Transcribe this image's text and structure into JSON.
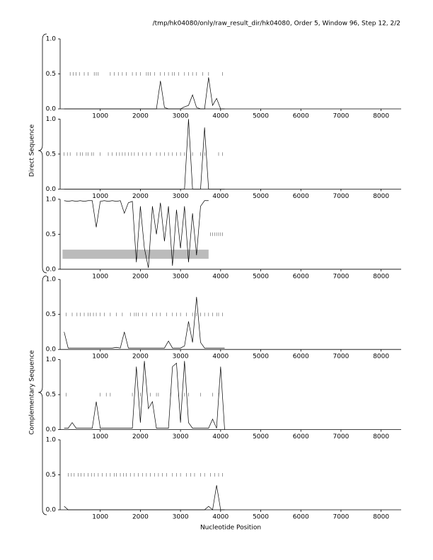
{
  "title": "/tmp/hk04080/only/raw_result_dir/hk04080, Order 5, Window 96, Step 12, 2/2",
  "x_label": "Nucleotide Position",
  "groups": [
    "Direct Sequence",
    "Complementary Sequence"
  ],
  "chart_data": [
    {
      "type": "line",
      "color": "#000000",
      "x": [
        100,
        200,
        300,
        400,
        500,
        600,
        700,
        800,
        900,
        1000,
        1100,
        1200,
        1300,
        1400,
        1500,
        1600,
        1700,
        1800,
        1900,
        2000,
        2100,
        2200,
        2300,
        2400,
        2500,
        2600,
        2700,
        2800,
        2900,
        3000,
        3100,
        3200,
        3300,
        3400,
        3500,
        3600,
        3700,
        3800,
        3900,
        4000,
        4100
      ],
      "series": [
        {
          "values": [
            0,
            0,
            0,
            0,
            0,
            0,
            0,
            0,
            0,
            0,
            0,
            0,
            0,
            0,
            0,
            0,
            0,
            0,
            0,
            0,
            0,
            0,
            0,
            0,
            0.4,
            0.02,
            0,
            0,
            0,
            0,
            0.03,
            0.05,
            0.2,
            0.02,
            0,
            0,
            0.45,
            0.05,
            0.15,
            0,
            0
          ]
        }
      ],
      "stops": [
        250,
        330,
        400,
        480,
        600,
        700,
        850,
        900,
        950,
        1250,
        1350,
        1450,
        1550,
        1650,
        1800,
        1900,
        2000,
        2150,
        2200,
        2250,
        2350,
        2500,
        2600,
        2700,
        2800,
        2850,
        2950,
        3100,
        3200,
        3300,
        3400,
        3550,
        3700,
        4050
      ],
      "xlim": [
        0,
        8500
      ],
      "xticks": [
        1000,
        2000,
        3000,
        4000,
        5000,
        6000,
        7000,
        8000
      ],
      "ylim": [
        0,
        1
      ],
      "yticks": [
        {
          "value": 0,
          "label": "0.0"
        },
        0.5,
        {
          "value": 1,
          "label": "1.0"
        }
      ]
    },
    {
      "type": "line",
      "color": "#000000",
      "x": [
        100,
        200,
        300,
        400,
        500,
        600,
        700,
        800,
        900,
        1000,
        1100,
        1200,
        1300,
        1400,
        1500,
        1600,
        1700,
        1800,
        1900,
        2000,
        2100,
        2200,
        2300,
        2400,
        2500,
        2600,
        2700,
        2800,
        2900,
        3000,
        3100,
        3200,
        3300,
        3400,
        3500,
        3600,
        3700,
        3800,
        3900,
        4000,
        4100
      ],
      "series": [
        {
          "values": [
            0,
            0,
            0,
            0,
            0,
            0,
            0,
            0,
            0,
            0,
            0,
            0,
            0,
            0,
            0,
            0,
            0,
            0,
            0,
            0,
            0,
            0,
            0,
            0,
            0,
            0,
            0,
            0,
            0,
            0,
            0,
            1,
            0,
            0,
            0,
            0.88,
            0,
            0,
            0,
            0,
            0
          ]
        }
      ],
      "stops": [
        100,
        180,
        250,
        420,
        500,
        560,
        650,
        700,
        780,
        830,
        1000,
        1200,
        1300,
        1400,
        1480,
        1550,
        1620,
        1700,
        1780,
        1850,
        1950,
        2050,
        2150,
        2250,
        2400,
        2500,
        2600,
        2700,
        2800,
        2900,
        3000,
        3100,
        3300,
        3500,
        3600,
        3950,
        4050
      ],
      "xlim": [
        0,
        8500
      ],
      "xticks": [
        1000,
        2000,
        3000,
        4000,
        5000,
        6000,
        7000,
        8000
      ],
      "ylim": [
        0,
        1
      ],
      "yticks": [
        {
          "value": 0,
          "label": "0.0"
        },
        0.5,
        {
          "value": 1,
          "label": "1.0"
        }
      ]
    },
    {
      "type": "line",
      "color": "#000000",
      "x": [
        100,
        200,
        300,
        400,
        500,
        600,
        700,
        800,
        900,
        1000,
        1100,
        1200,
        1300,
        1400,
        1500,
        1600,
        1700,
        1800,
        1900,
        2000,
        2100,
        2200,
        2300,
        2400,
        2500,
        2600,
        2700,
        2800,
        2900,
        3000,
        3100,
        3200,
        3300,
        3400,
        3500,
        3600,
        3700,
        3800,
        3900,
        4000,
        4100
      ],
      "series": [
        {
          "values": [
            0.98,
            0.97,
            0.98,
            0.97,
            0.98,
            0.97,
            0.98,
            0.98,
            0.6,
            0.97,
            0.98,
            0.97,
            0.98,
            0.97,
            0.98,
            0.8,
            0.95,
            0.97,
            0.1,
            0.9,
            0.3,
            0.02,
            0.9,
            0.5,
            0.95,
            0.4,
            0.9,
            0.05,
            0.85,
            0.3,
            0.9,
            0.1,
            0.8,
            0.2,
            0.9,
            0.98,
            0.98,
            null,
            null,
            null,
            null
          ]
        }
      ],
      "stops": [
        3750,
        3800,
        3850,
        3900,
        3950,
        4000,
        4050
      ],
      "regions": [
        [
          60,
          3700
        ]
      ],
      "xlim": [
        0,
        8500
      ],
      "xticks": [
        1000,
        2000,
        3000,
        4000,
        5000,
        6000,
        7000,
        8000
      ],
      "ylim": [
        0,
        1
      ],
      "yticks": [
        {
          "value": 0,
          "label": "0.0"
        },
        0.5,
        {
          "value": 1,
          "label": "1.0"
        }
      ]
    },
    {
      "type": "line",
      "color": "#000000",
      "x": [
        100,
        200,
        300,
        400,
        500,
        600,
        700,
        800,
        900,
        1000,
        1100,
        1200,
        1300,
        1400,
        1500,
        1600,
        1700,
        1800,
        1900,
        2000,
        2100,
        2200,
        2300,
        2400,
        2500,
        2600,
        2700,
        2800,
        2900,
        3000,
        3100,
        3200,
        3300,
        3400,
        3500,
        3600,
        3700,
        3800,
        3900,
        4000,
        4100
      ],
      "series": [
        {
          "values": [
            0.25,
            0.02,
            0.02,
            0.02,
            0.02,
            0.02,
            0.02,
            0.02,
            0.02,
            0.02,
            0.02,
            0.02,
            0.02,
            0.03,
            0.02,
            0.25,
            0.02,
            0.02,
            0.02,
            0.02,
            0.02,
            0.02,
            0.02,
            0.02,
            0.02,
            0.02,
            0.12,
            0.02,
            0.02,
            0.02,
            0.05,
            0.4,
            0.1,
            0.75,
            0.1,
            0.02,
            0.02,
            0.02,
            0.02,
            0.02,
            0.02
          ]
        }
      ],
      "stops": [
        150,
        300,
        420,
        500,
        600,
        700,
        750,
        830,
        900,
        1000,
        1100,
        1250,
        1400,
        1550,
        1750,
        1850,
        1900,
        1950,
        2050,
        2150,
        2300,
        2400,
        2500,
        2650,
        2800,
        2900,
        3000,
        3150,
        3300,
        3400,
        3500,
        3600,
        3700,
        3800,
        3900,
        3950,
        4050
      ],
      "xlim": [
        0,
        8500
      ],
      "xticks": [
        1000,
        2000,
        3000,
        4000,
        5000,
        6000,
        7000,
        8000
      ],
      "ylim": [
        0,
        1
      ],
      "yticks": [
        {
          "value": 0,
          "label": "0.0"
        },
        0.5,
        {
          "value": 1,
          "label": "1.0"
        }
      ]
    },
    {
      "type": "line",
      "color": "#000000",
      "x": [
        100,
        200,
        300,
        400,
        500,
        600,
        700,
        800,
        900,
        1000,
        1100,
        1200,
        1300,
        1400,
        1500,
        1600,
        1700,
        1800,
        1900,
        2000,
        2100,
        2200,
        2300,
        2400,
        2500,
        2600,
        2700,
        2800,
        2900,
        3000,
        3100,
        3200,
        3300,
        3400,
        3500,
        3600,
        3700,
        3800,
        3900,
        4000,
        4100
      ],
      "series": [
        {
          "values": [
            0.02,
            0.02,
            0.1,
            0.02,
            0.02,
            0.02,
            0.02,
            0.02,
            0.4,
            0.02,
            0.02,
            0.02,
            0.02,
            0.02,
            0.02,
            0.02,
            0.02,
            0.02,
            0.9,
            0.1,
            0.98,
            0.3,
            0.4,
            0.02,
            0.02,
            0.02,
            0.02,
            0.9,
            0.95,
            0.1,
            0.98,
            0.1,
            0.02,
            0.02,
            0.02,
            0.02,
            0.02,
            0.15,
            0.02,
            0.9,
            0
          ]
        }
      ],
      "stops": [
        150,
        1000,
        1150,
        1250,
        1800,
        2000,
        2250,
        2400,
        2450,
        2750,
        2950,
        3100,
        3200,
        3500,
        3800,
        3950
      ],
      "xlim": [
        0,
        8500
      ],
      "xticks": [
        1000,
        2000,
        3000,
        4000,
        5000,
        6000,
        7000,
        8000
      ],
      "ylim": [
        0,
        1
      ],
      "yticks": [
        {
          "value": 0,
          "label": "0.0"
        },
        0.5,
        {
          "value": 1,
          "label": "1.0"
        }
      ]
    },
    {
      "type": "line",
      "color": "#000000",
      "x": [
        100,
        200,
        300,
        400,
        500,
        600,
        700,
        800,
        900,
        1000,
        1100,
        1200,
        1300,
        1400,
        1500,
        1600,
        1700,
        1800,
        1900,
        2000,
        2100,
        2200,
        2300,
        2400,
        2500,
        2600,
        2700,
        2800,
        2900,
        3000,
        3100,
        3200,
        3300,
        3400,
        3500,
        3600,
        3700,
        3800,
        3900,
        4000,
        4100
      ],
      "series": [
        {
          "values": [
            0.05,
            0,
            0,
            0,
            0,
            0,
            0,
            0,
            0,
            0,
            0,
            0,
            0,
            0,
            0,
            0,
            0,
            0,
            0,
            0,
            0,
            0,
            0,
            0,
            0,
            0,
            0,
            0,
            0,
            0,
            0,
            0,
            0,
            0,
            0,
            0,
            0.05,
            0,
            0.35,
            0,
            0
          ]
        }
      ],
      "stops": [
        200,
        280,
        350,
        450,
        520,
        600,
        700,
        780,
        850,
        950,
        1050,
        1150,
        1250,
        1350,
        1400,
        1500,
        1580,
        1650,
        1750,
        1850,
        1950,
        2050,
        2150,
        2250,
        2350,
        2450,
        2550,
        2650,
        2800,
        2900,
        3000,
        3150,
        3250,
        3350,
        3500,
        3600,
        3750,
        3850,
        3950,
        4050
      ],
      "xlim": [
        0,
        8500
      ],
      "xticks": [
        1000,
        2000,
        3000,
        4000,
        5000,
        6000,
        7000,
        8000
      ],
      "ylim": [
        0,
        1
      ],
      "yticks": [
        {
          "value": 0,
          "label": "0.0"
        },
        0.5,
        {
          "value": 1,
          "label": "1.0"
        }
      ]
    }
  ]
}
